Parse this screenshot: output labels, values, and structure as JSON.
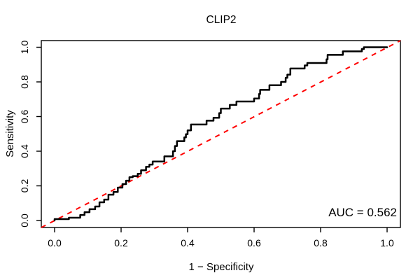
{
  "title": "CLIP2",
  "annotation": {
    "auc_label": "AUC = 0.562",
    "auc_value": 0.562
  },
  "colors": {
    "curve": "#000000",
    "diagonal": "#ff0000",
    "axis": "#000000",
    "background": "#ffffff"
  },
  "chart_data": {
    "type": "line",
    "subtype": "roc-step-curve",
    "title": "CLIP2",
    "xlabel": "1 − Specificity",
    "ylabel": "Sensitivity",
    "xlim": [
      0,
      1
    ],
    "ylim": [
      0,
      1
    ],
    "grid": false,
    "legend_position": "none",
    "x_ticks": [
      {
        "v": 0.0,
        "label": "0.0"
      },
      {
        "v": 0.2,
        "label": "0.2"
      },
      {
        "v": 0.4,
        "label": "0.4"
      },
      {
        "v": 0.6,
        "label": "0.6"
      },
      {
        "v": 0.8,
        "label": "0.8"
      },
      {
        "v": 1.0,
        "label": "1.0"
      }
    ],
    "y_ticks": [
      {
        "v": 0.0,
        "label": "0.0"
      },
      {
        "v": 0.2,
        "label": "0.2"
      },
      {
        "v": 0.4,
        "label": "0.4"
      },
      {
        "v": 0.6,
        "label": "0.6"
      },
      {
        "v": 0.8,
        "label": "0.8"
      },
      {
        "v": 1.0,
        "label": "1.0"
      }
    ],
    "series": [
      {
        "name": "ROC curve",
        "color": "#000000",
        "style": "solid",
        "points": [
          [
            0,
            0
          ],
          [
            0,
            0.008
          ],
          [
            0.043,
            0.008
          ],
          [
            0.043,
            0.016
          ],
          [
            0.077,
            0.016
          ],
          [
            0.077,
            0.032
          ],
          [
            0.09,
            0.032
          ],
          [
            0.09,
            0.048
          ],
          [
            0.105,
            0.048
          ],
          [
            0.105,
            0.065
          ],
          [
            0.122,
            0.065
          ],
          [
            0.122,
            0.081
          ],
          [
            0.135,
            0.081
          ],
          [
            0.135,
            0.105
          ],
          [
            0.149,
            0.105
          ],
          [
            0.149,
            0.121
          ],
          [
            0.162,
            0.121
          ],
          [
            0.162,
            0.149
          ],
          [
            0.177,
            0.149
          ],
          [
            0.177,
            0.165
          ],
          [
            0.19,
            0.165
          ],
          [
            0.19,
            0.19
          ],
          [
            0.204,
            0.19
          ],
          [
            0.204,
            0.21
          ],
          [
            0.215,
            0.21
          ],
          [
            0.215,
            0.23
          ],
          [
            0.225,
            0.23
          ],
          [
            0.225,
            0.25
          ],
          [
            0.235,
            0.25
          ],
          [
            0.235,
            0.256
          ],
          [
            0.25,
            0.256
          ],
          [
            0.25,
            0.27
          ],
          [
            0.26,
            0.27
          ],
          [
            0.26,
            0.29
          ],
          [
            0.275,
            0.29
          ],
          [
            0.275,
            0.31
          ],
          [
            0.285,
            0.31
          ],
          [
            0.285,
            0.323
          ],
          [
            0.295,
            0.323
          ],
          [
            0.295,
            0.34
          ],
          [
            0.33,
            0.34
          ],
          [
            0.33,
            0.37
          ],
          [
            0.356,
            0.37
          ],
          [
            0.356,
            0.4
          ],
          [
            0.362,
            0.4
          ],
          [
            0.362,
            0.43
          ],
          [
            0.368,
            0.43
          ],
          [
            0.368,
            0.458
          ],
          [
            0.39,
            0.458
          ],
          [
            0.39,
            0.48
          ],
          [
            0.395,
            0.48
          ],
          [
            0.395,
            0.498
          ],
          [
            0.4,
            0.498
          ],
          [
            0.4,
            0.52
          ],
          [
            0.41,
            0.52
          ],
          [
            0.41,
            0.554
          ],
          [
            0.457,
            0.554
          ],
          [
            0.457,
            0.576
          ],
          [
            0.478,
            0.576
          ],
          [
            0.478,
            0.593
          ],
          [
            0.495,
            0.593
          ],
          [
            0.495,
            0.62
          ],
          [
            0.5,
            0.62
          ],
          [
            0.5,
            0.646
          ],
          [
            0.527,
            0.646
          ],
          [
            0.527,
            0.667
          ],
          [
            0.547,
            0.667
          ],
          [
            0.547,
            0.687
          ],
          [
            0.6,
            0.687
          ],
          [
            0.6,
            0.704
          ],
          [
            0.615,
            0.704
          ],
          [
            0.615,
            0.73
          ],
          [
            0.618,
            0.73
          ],
          [
            0.618,
            0.754
          ],
          [
            0.646,
            0.754
          ],
          [
            0.646,
            0.781
          ],
          [
            0.681,
            0.781
          ],
          [
            0.681,
            0.8
          ],
          [
            0.695,
            0.8
          ],
          [
            0.695,
            0.824
          ],
          [
            0.7,
            0.824
          ],
          [
            0.7,
            0.842
          ],
          [
            0.709,
            0.842
          ],
          [
            0.709,
            0.877
          ],
          [
            0.752,
            0.877
          ],
          [
            0.752,
            0.895
          ],
          [
            0.76,
            0.895
          ],
          [
            0.76,
            0.909
          ],
          [
            0.818,
            0.909
          ],
          [
            0.818,
            0.93
          ],
          [
            0.821,
            0.93
          ],
          [
            0.821,
            0.956
          ],
          [
            0.867,
            0.956
          ],
          [
            0.867,
            0.976
          ],
          [
            0.924,
            0.976
          ],
          [
            0.924,
            0.99
          ],
          [
            0.93,
            0.99
          ],
          [
            0.93,
            1
          ],
          [
            1,
            1
          ]
        ]
      },
      {
        "name": "chance diagonal",
        "color": "#ff0000",
        "style": "dashed",
        "points": [
          [
            0,
            0
          ],
          [
            1,
            1
          ]
        ]
      }
    ],
    "annotations": [
      {
        "text": "AUC = 0.562",
        "x": 1.0,
        "y": 0.05,
        "align": "right"
      }
    ]
  }
}
